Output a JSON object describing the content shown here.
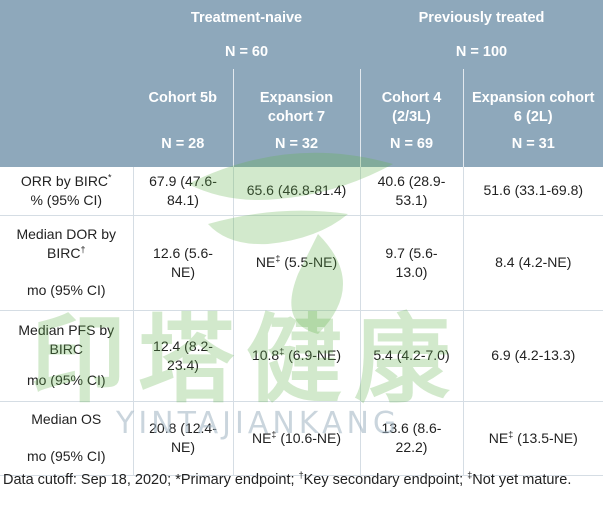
{
  "header": {
    "group_naive": "Treatment-naive",
    "group_prev": "Previously treated",
    "n_naive": "N = 60",
    "n_prev": "N = 100",
    "cohorts": [
      {
        "line1": "Cohort 5b",
        "line2": "",
        "n": "N = 28"
      },
      {
        "line1": "Expansion",
        "line2": "cohort 7",
        "n": "N = 32"
      },
      {
        "line1": "Cohort 4",
        "line2": "(2/3L)",
        "n": "N = 69"
      },
      {
        "line1": "Expansion cohort",
        "line2": "6 (2L)",
        "n": "N = 31"
      }
    ]
  },
  "rows": [
    {
      "label_line1": "ORR by BIRC",
      "label_sup": "*",
      "label_line2": "% (95% CI)",
      "cells": [
        {
          "l1": "67.9 (47.6-",
          "sup": "",
          "l2": "84.1)"
        },
        {
          "l1": "65.6 (46.8-81.4)",
          "sup": "",
          "l2": ""
        },
        {
          "l1": "40.6 (28.9-",
          "sup": "",
          "l2": "53.1)"
        },
        {
          "l1": "51.6 (33.1-69.8)",
          "sup": "",
          "l2": ""
        }
      ]
    },
    {
      "label_line1": "Median DOR by",
      "label_line1b": "BIRC",
      "label_sup": "†",
      "label_line2": "mo (95% CI)",
      "cells": [
        {
          "l1": "12.6 (5.6-",
          "sup": "",
          "l2": "NE)"
        },
        {
          "pre": "NE",
          "sup": "‡",
          "l1": " (5.5-NE)",
          "l2": ""
        },
        {
          "l1": "9.7 (5.6-",
          "sup": "",
          "l2": "13.0)"
        },
        {
          "l1": "8.4 (4.2-NE)",
          "sup": "",
          "l2": ""
        }
      ]
    },
    {
      "label_line1": "Median PFS by",
      "label_line1b": "BIRC",
      "label_sup": "",
      "label_line2": "mo (95% CI)",
      "cells": [
        {
          "l1": "12.4 (8.2-",
          "sup": "",
          "l2": "23.4)"
        },
        {
          "pre": "10.8",
          "sup": "‡",
          "l1": " (6.9-NE)",
          "l2": ""
        },
        {
          "l1": "5.4 (4.2-7.0)",
          "sup": "",
          "l2": ""
        },
        {
          "l1": "6.9 (4.2-13.3)",
          "sup": "",
          "l2": ""
        }
      ]
    },
    {
      "label_line1": "Median OS",
      "label_sup": "",
      "label_line2": "mo (95% CI)",
      "cells": [
        {
          "l1": "20.8 (12.4-",
          "sup": "",
          "l2": "NE)"
        },
        {
          "pre": "NE",
          "sup": "‡",
          "l1": " (10.6-NE)",
          "l2": ""
        },
        {
          "l1": "13.6 (8.6-",
          "sup": "",
          "l2": "22.2)"
        },
        {
          "pre": "NE",
          "sup": "‡",
          "l1": " (13.5-NE)",
          "l2": ""
        }
      ]
    }
  ],
  "footer": {
    "text1": "Data cutoff: Sep 18, 2020; *Primary endpoint; ",
    "sup1": "†",
    "text2": "Key secondary endpoint; ",
    "sup2": "‡",
    "text3": "Not yet mature."
  },
  "watermark": {
    "cn": "印塔健康",
    "en": "YINTAJIANKANG",
    "color": "#62b34a"
  }
}
